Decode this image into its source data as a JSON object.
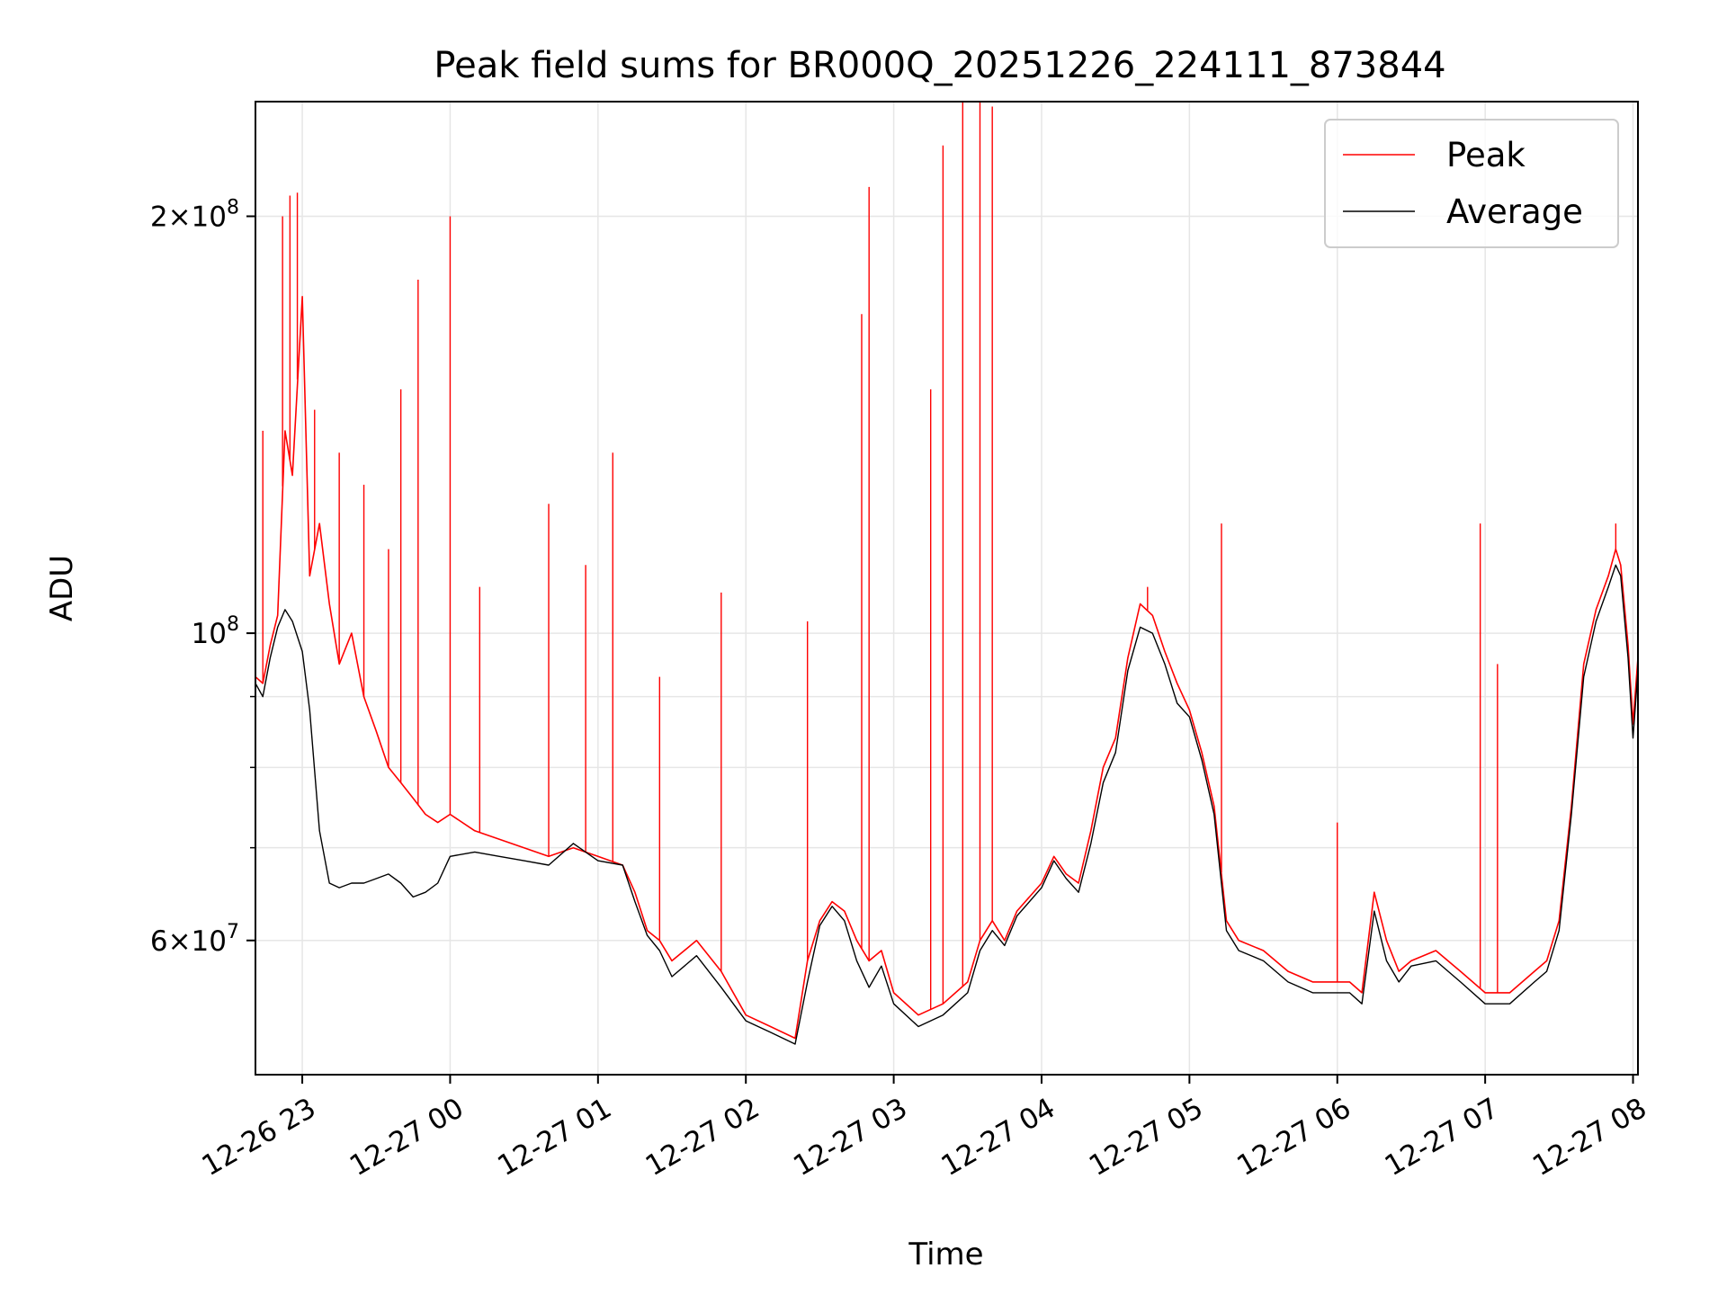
{
  "chart_data": {
    "type": "line",
    "title": "Peak field sums for BR000Q_20251226_224111_873844",
    "xlabel": "Time",
    "ylabel": "ADU",
    "y_scale": "log",
    "ylim": [
      48000000,
      242000000
    ],
    "xlim": [
      "2025-12-26 22:41",
      "2025-12-27 08:02"
    ],
    "grid": true,
    "legend_position": "top-right",
    "colors": {
      "peak": "#ff0000",
      "average": "#000000",
      "grid": "#e6e6e6"
    },
    "x_ticks": [
      {
        "t": "2025-12-26 23:00",
        "label": "12-26 23"
      },
      {
        "t": "2025-12-27 00:00",
        "label": "12-27 00"
      },
      {
        "t": "2025-12-27 01:00",
        "label": "12-27 01"
      },
      {
        "t": "2025-12-27 02:00",
        "label": "12-27 02"
      },
      {
        "t": "2025-12-27 03:00",
        "label": "12-27 03"
      },
      {
        "t": "2025-12-27 04:00",
        "label": "12-27 04"
      },
      {
        "t": "2025-12-27 05:00",
        "label": "12-27 05"
      },
      {
        "t": "2025-12-27 06:00",
        "label": "12-27 06"
      },
      {
        "t": "2025-12-27 07:00",
        "label": "12-27 07"
      },
      {
        "t": "2025-12-27 08:00",
        "label": "12-27 08"
      }
    ],
    "y_major_ticks": [
      {
        "value": 60000000,
        "mantissa": "6",
        "exp": "7"
      },
      {
        "value": 100000000,
        "mantissa": "",
        "exp": "8"
      },
      {
        "value": 200000000,
        "mantissa": "2",
        "exp": "8"
      }
    ],
    "y_minor_ticks": [
      70000000,
      80000000,
      90000000
    ],
    "series": [
      {
        "name": "Peak",
        "x": [
          "2025-12-26 22:41",
          "2025-12-26 22:44",
          "2025-12-26 22:47",
          "2025-12-26 22:50",
          "2025-12-26 22:53",
          "2025-12-26 22:56",
          "2025-12-26 23:00",
          "2025-12-26 23:03",
          "2025-12-26 23:07",
          "2025-12-26 23:11",
          "2025-12-26 23:15",
          "2025-12-26 23:20",
          "2025-12-26 23:25",
          "2025-12-26 23:30",
          "2025-12-26 23:35",
          "2025-12-26 23:40",
          "2025-12-26 23:45",
          "2025-12-26 23:50",
          "2025-12-26 23:55",
          "2025-12-27 00:00",
          "2025-12-27 00:10",
          "2025-12-27 00:20",
          "2025-12-27 00:30",
          "2025-12-27 00:40",
          "2025-12-27 00:50",
          "2025-12-27 01:00",
          "2025-12-27 01:10",
          "2025-12-27 01:15",
          "2025-12-27 01:20",
          "2025-12-27 01:25",
          "2025-12-27 01:30",
          "2025-12-27 01:40",
          "2025-12-27 01:50",
          "2025-12-27 02:00",
          "2025-12-27 02:10",
          "2025-12-27 02:20",
          "2025-12-27 02:25",
          "2025-12-27 02:30",
          "2025-12-27 02:35",
          "2025-12-27 02:40",
          "2025-12-27 02:45",
          "2025-12-27 02:50",
          "2025-12-27 02:55",
          "2025-12-27 03:00",
          "2025-12-27 03:10",
          "2025-12-27 03:20",
          "2025-12-27 03:30",
          "2025-12-27 03:35",
          "2025-12-27 03:40",
          "2025-12-27 03:45",
          "2025-12-27 03:50",
          "2025-12-27 04:00",
          "2025-12-27 04:05",
          "2025-12-27 04:10",
          "2025-12-27 04:15",
          "2025-12-27 04:20",
          "2025-12-27 04:25",
          "2025-12-27 04:30",
          "2025-12-27 04:35",
          "2025-12-27 04:40",
          "2025-12-27 04:45",
          "2025-12-27 04:50",
          "2025-12-27 04:55",
          "2025-12-27 05:00",
          "2025-12-27 05:05",
          "2025-12-27 05:10",
          "2025-12-27 05:15",
          "2025-12-27 05:20",
          "2025-12-27 05:30",
          "2025-12-27 05:40",
          "2025-12-27 05:50",
          "2025-12-27 06:00",
          "2025-12-27 06:05",
          "2025-12-27 06:10",
          "2025-12-27 06:15",
          "2025-12-27 06:20",
          "2025-12-27 06:25",
          "2025-12-27 06:30",
          "2025-12-27 06:40",
          "2025-12-27 06:50",
          "2025-12-27 07:00",
          "2025-12-27 07:10",
          "2025-12-27 07:20",
          "2025-12-27 07:25",
          "2025-12-27 07:30",
          "2025-12-27 07:35",
          "2025-12-27 07:40",
          "2025-12-27 07:45",
          "2025-12-27 07:50",
          "2025-12-27 07:53",
          "2025-12-27 07:55",
          "2025-12-27 07:58",
          "2025-12-27 08:00",
          "2025-12-27 08:02"
        ],
        "values": [
          93000000,
          92000000,
          98000000,
          103000000,
          140000000,
          130000000,
          175000000,
          110000000,
          120000000,
          105000000,
          95000000,
          100000000,
          90000000,
          85000000,
          80000000,
          78000000,
          76000000,
          74000000,
          73000000,
          74000000,
          72000000,
          71000000,
          70000000,
          69000000,
          70000000,
          69000000,
          68000000,
          65000000,
          61000000,
          60000000,
          58000000,
          60000000,
          57000000,
          53000000,
          52000000,
          51000000,
          58000000,
          62000000,
          64000000,
          63000000,
          60000000,
          58000000,
          59000000,
          55000000,
          53000000,
          54000000,
          56000000,
          60000000,
          62000000,
          60000000,
          63000000,
          66000000,
          69000000,
          67000000,
          66000000,
          72000000,
          80000000,
          84000000,
          96000000,
          105000000,
          103000000,
          97000000,
          92000000,
          88000000,
          82000000,
          75000000,
          62000000,
          60000000,
          59000000,
          57000000,
          56000000,
          56000000,
          56000000,
          55000000,
          65000000,
          60000000,
          57000000,
          58000000,
          59000000,
          57000000,
          55000000,
          55000000,
          57000000,
          58000000,
          62000000,
          75000000,
          95000000,
          104000000,
          110000000,
          115000000,
          112000000,
          98000000,
          86000000,
          96000000
        ]
      },
      {
        "name": "Average",
        "x": [
          "2025-12-26 22:41",
          "2025-12-26 22:44",
          "2025-12-26 22:47",
          "2025-12-26 22:50",
          "2025-12-26 22:53",
          "2025-12-26 22:56",
          "2025-12-26 23:00",
          "2025-12-26 23:03",
          "2025-12-26 23:07",
          "2025-12-26 23:11",
          "2025-12-26 23:15",
          "2025-12-26 23:20",
          "2025-12-26 23:25",
          "2025-12-26 23:30",
          "2025-12-26 23:35",
          "2025-12-26 23:40",
          "2025-12-26 23:45",
          "2025-12-26 23:50",
          "2025-12-26 23:55",
          "2025-12-27 00:00",
          "2025-12-27 00:10",
          "2025-12-27 00:20",
          "2025-12-27 00:30",
          "2025-12-27 00:40",
          "2025-12-27 00:50",
          "2025-12-27 01:00",
          "2025-12-27 01:10",
          "2025-12-27 01:15",
          "2025-12-27 01:20",
          "2025-12-27 01:25",
          "2025-12-27 01:30",
          "2025-12-27 01:40",
          "2025-12-27 01:50",
          "2025-12-27 02:00",
          "2025-12-27 02:10",
          "2025-12-27 02:20",
          "2025-12-27 02:25",
          "2025-12-27 02:30",
          "2025-12-27 02:35",
          "2025-12-27 02:40",
          "2025-12-27 02:45",
          "2025-12-27 02:50",
          "2025-12-27 02:55",
          "2025-12-27 03:00",
          "2025-12-27 03:10",
          "2025-12-27 03:20",
          "2025-12-27 03:30",
          "2025-12-27 03:35",
          "2025-12-27 03:40",
          "2025-12-27 03:45",
          "2025-12-27 03:50",
          "2025-12-27 04:00",
          "2025-12-27 04:05",
          "2025-12-27 04:10",
          "2025-12-27 04:15",
          "2025-12-27 04:20",
          "2025-12-27 04:25",
          "2025-12-27 04:30",
          "2025-12-27 04:35",
          "2025-12-27 04:40",
          "2025-12-27 04:45",
          "2025-12-27 04:50",
          "2025-12-27 04:55",
          "2025-12-27 05:00",
          "2025-12-27 05:05",
          "2025-12-27 05:10",
          "2025-12-27 05:15",
          "2025-12-27 05:20",
          "2025-12-27 05:30",
          "2025-12-27 05:40",
          "2025-12-27 05:50",
          "2025-12-27 06:00",
          "2025-12-27 06:05",
          "2025-12-27 06:10",
          "2025-12-27 06:15",
          "2025-12-27 06:20",
          "2025-12-27 06:25",
          "2025-12-27 06:30",
          "2025-12-27 06:40",
          "2025-12-27 06:50",
          "2025-12-27 07:00",
          "2025-12-27 07:10",
          "2025-12-27 07:20",
          "2025-12-27 07:25",
          "2025-12-27 07:30",
          "2025-12-27 07:35",
          "2025-12-27 07:40",
          "2025-12-27 07:45",
          "2025-12-27 07:50",
          "2025-12-27 07:53",
          "2025-12-27 07:55",
          "2025-12-27 07:58",
          "2025-12-27 08:00",
          "2025-12-27 08:02"
        ],
        "values": [
          92000000,
          90000000,
          96000000,
          101000000,
          104000000,
          102000000,
          97000000,
          88000000,
          72000000,
          66000000,
          65500000,
          66000000,
          66000000,
          66500000,
          67000000,
          66000000,
          64500000,
          65000000,
          66000000,
          69000000,
          69500000,
          69000000,
          68500000,
          68000000,
          70500000,
          68500000,
          68000000,
          64000000,
          60500000,
          59000000,
          56500000,
          58500000,
          55500000,
          52500000,
          51500000,
          50500000,
          56000000,
          61500000,
          63500000,
          62000000,
          58000000,
          55500000,
          57500000,
          54000000,
          52000000,
          53000000,
          55000000,
          59000000,
          61000000,
          59500000,
          62500000,
          65500000,
          68500000,
          66500000,
          65000000,
          70500000,
          78000000,
          82000000,
          94000000,
          101000000,
          100000000,
          95000000,
          89000000,
          87000000,
          81000000,
          74000000,
          61000000,
          59000000,
          58000000,
          56000000,
          55000000,
          55000000,
          55000000,
          54000000,
          63000000,
          58000000,
          56000000,
          57500000,
          58000000,
          56000000,
          54000000,
          54000000,
          56000000,
          57000000,
          61000000,
          74000000,
          93000000,
          102000000,
          108000000,
          112000000,
          110000000,
          96000000,
          84000000,
          94000000
        ]
      }
    ],
    "peak_spikes": [
      {
        "t": "2025-12-26 22:44",
        "value": 140000000
      },
      {
        "t": "2025-12-26 22:52",
        "value": 200000000
      },
      {
        "t": "2025-12-26 22:55",
        "value": 207000000
      },
      {
        "t": "2025-12-26 22:58",
        "value": 208000000
      },
      {
        "t": "2025-12-26 23:05",
        "value": 145000000
      },
      {
        "t": "2025-12-26 23:15",
        "value": 135000000
      },
      {
        "t": "2025-12-26 23:25",
        "value": 128000000
      },
      {
        "t": "2025-12-26 23:35",
        "value": 115000000
      },
      {
        "t": "2025-12-26 23:40",
        "value": 150000000
      },
      {
        "t": "2025-12-26 23:47",
        "value": 180000000
      },
      {
        "t": "2025-12-27 00:00",
        "value": 200000000
      },
      {
        "t": "2025-12-27 00:12",
        "value": 108000000
      },
      {
        "t": "2025-12-27 00:40",
        "value": 124000000
      },
      {
        "t": "2025-12-27 00:55",
        "value": 112000000
      },
      {
        "t": "2025-12-27 01:06",
        "value": 135000000
      },
      {
        "t": "2025-12-27 01:25",
        "value": 93000000
      },
      {
        "t": "2025-12-27 01:50",
        "value": 107000000
      },
      {
        "t": "2025-12-27 02:25",
        "value": 102000000
      },
      {
        "t": "2025-12-27 02:47",
        "value": 170000000
      },
      {
        "t": "2025-12-27 02:50",
        "value": 210000000
      },
      {
        "t": "2025-12-27 03:15",
        "value": 150000000
      },
      {
        "t": "2025-12-27 03:20",
        "value": 225000000
      },
      {
        "t": "2025-12-27 03:28",
        "value": 242000000
      },
      {
        "t": "2025-12-27 03:35",
        "value": 242000000
      },
      {
        "t": "2025-12-27 03:40",
        "value": 240000000
      },
      {
        "t": "2025-12-27 04:43",
        "value": 108000000
      },
      {
        "t": "2025-12-27 05:13",
        "value": 120000000
      },
      {
        "t": "2025-12-27 06:00",
        "value": 73000000
      },
      {
        "t": "2025-12-27 06:58",
        "value": 120000000
      },
      {
        "t": "2025-12-27 07:05",
        "value": 95000000
      },
      {
        "t": "2025-12-27 07:53",
        "value": 120000000
      }
    ]
  }
}
